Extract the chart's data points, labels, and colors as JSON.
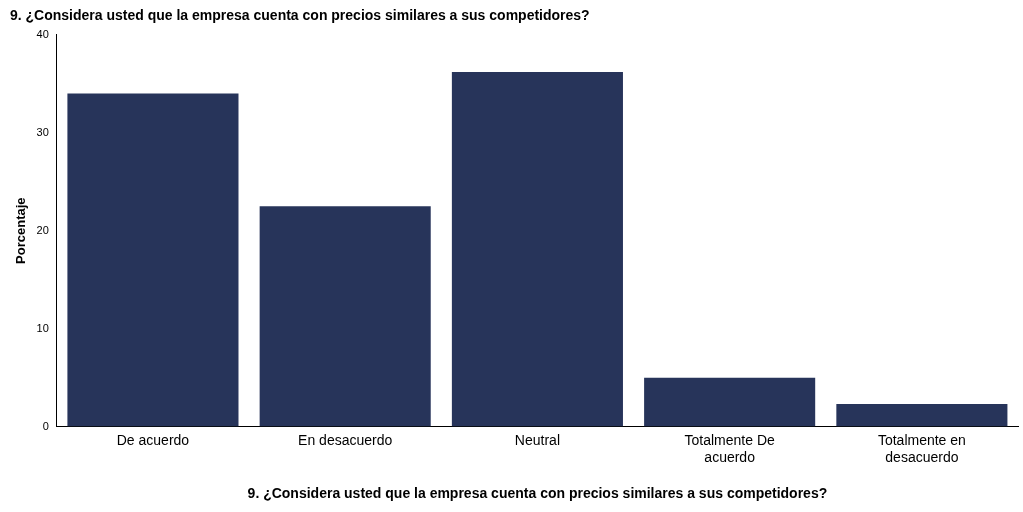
{
  "chart_data": {
    "type": "bar",
    "title": "9. ¿Considera usted que la empresa cuenta con precios similares a sus competidores?",
    "xlabel": "9. ¿Considera usted que la empresa cuenta con precios similares a sus competidores?",
    "ylabel": "Porcentaje",
    "categories": [
      "De acuerdo",
      "En desacuerdo",
      "Neutral",
      "Totalmente De acuerdo",
      "Totalmente en desacuerdo"
    ],
    "values": [
      34,
      22.5,
      36.2,
      5,
      2.3
    ],
    "color": "#27345a",
    "ylim": [
      0,
      40
    ],
    "yticks": [
      0,
      10,
      20,
      30,
      40
    ],
    "grid": false,
    "legend": false
  }
}
